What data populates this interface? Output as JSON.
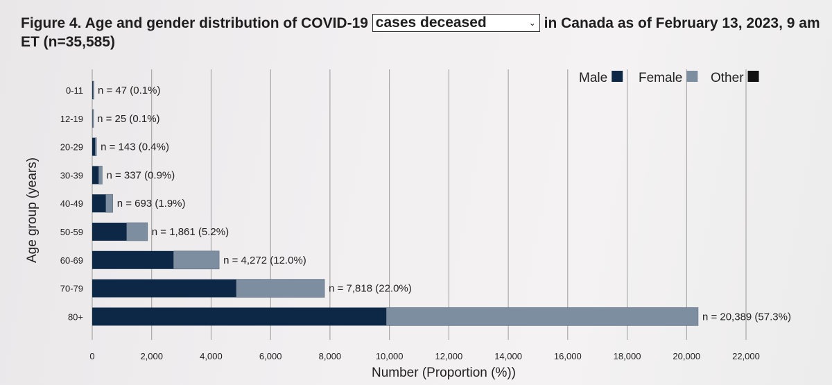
{
  "title": {
    "prefix": "Figure 4. Age and gender distribution of COVID-19",
    "dropdown_value": "cases deceased",
    "suffix": "in Canada as of February 13, 2023, 9 am ET (n=35,585)"
  },
  "colors": {
    "male": "#0d2846",
    "female": "#7d8ea1",
    "other": "#111111",
    "grid": "#9a9a9a"
  },
  "chart_data": {
    "type": "bar",
    "orientation": "horizontal",
    "stacked": true,
    "categories": [
      "0-11",
      "12-19",
      "20-29",
      "30-39",
      "40-49",
      "50-59",
      "60-69",
      "70-79",
      "80+"
    ],
    "totals": [
      47,
      25,
      143,
      337,
      693,
      1861,
      4272,
      7818,
      20389
    ],
    "data_labels": [
      "n = 47 (0.1%)",
      "n = 25 (0.1%)",
      "n = 143 (0.4%)",
      "n = 337 (0.9%)",
      "n = 693 (1.9%)",
      "n = 1,861 (5.2%)",
      "n = 4,272 (12.0%)",
      "n = 7,818 (22.0%)",
      "n = 20,389 (57.3%)"
    ],
    "series": [
      {
        "name": "Male",
        "values": [
          25,
          12,
          100,
          220,
          460,
          1160,
          2740,
          4850,
          9900
        ]
      },
      {
        "name": "Female",
        "values": [
          22,
          13,
          43,
          117,
          233,
          701,
          1532,
          2968,
          10489
        ]
      },
      {
        "name": "Other",
        "values": [
          0,
          0,
          0,
          0,
          0,
          0,
          0,
          0,
          0
        ]
      }
    ],
    "xlim": [
      0,
      22000
    ],
    "xticks": [
      0,
      2000,
      4000,
      6000,
      8000,
      10000,
      12000,
      14000,
      16000,
      18000,
      20000,
      22000
    ],
    "xtick_labels": [
      "0",
      "2,000",
      "4,000",
      "6,000",
      "8,000",
      "10,000",
      "12,000",
      "14,000",
      "16,000",
      "18,000",
      "20,000",
      "22,000"
    ],
    "xlabel": "Number (Proportion (%))",
    "ylabel": "Age group (years)",
    "legend_position": "top-right",
    "grid": "vertical"
  }
}
